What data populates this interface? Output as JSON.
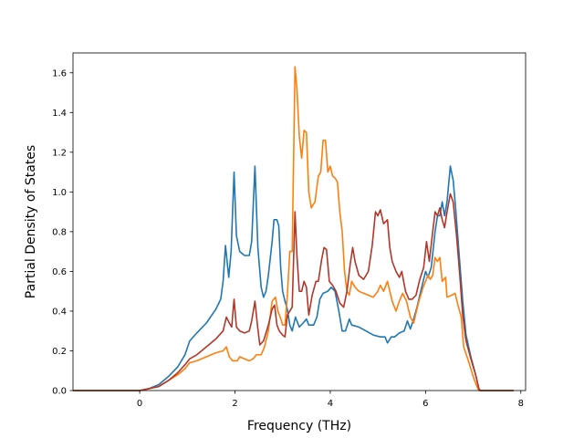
{
  "chart_data": {
    "type": "line",
    "title": "",
    "xlabel": "Frequency (THz)",
    "ylabel": "Partial Density of States",
    "xlim": [
      -1.4,
      8.1
    ],
    "ylim": [
      0.0,
      1.7
    ],
    "xticks": [
      0,
      2,
      4,
      6,
      8
    ],
    "yticks": [
      0.0,
      0.2,
      0.4,
      0.6,
      0.8,
      1.0,
      1.2,
      1.4,
      1.6
    ],
    "xtick_labels": [
      "0",
      "2",
      "4",
      "6",
      "8"
    ],
    "ytick_labels": [
      "0.0",
      "0.2",
      "0.4",
      "0.6",
      "0.8",
      "1.0",
      "1.2",
      "1.4",
      "1.6"
    ],
    "grid": false,
    "legend": null,
    "series": [
      {
        "color": "#1f77b4",
        "points": [
          [
            -1.4,
            0.0
          ],
          [
            -0.5,
            0.0
          ],
          [
            0.0,
            0.0
          ],
          [
            0.2,
            0.01
          ],
          [
            0.4,
            0.03
          ],
          [
            0.6,
            0.07
          ],
          [
            0.8,
            0.12
          ],
          [
            0.95,
            0.18
          ],
          [
            1.05,
            0.25
          ],
          [
            1.2,
            0.29
          ],
          [
            1.4,
            0.34
          ],
          [
            1.6,
            0.41
          ],
          [
            1.7,
            0.46
          ],
          [
            1.75,
            0.55
          ],
          [
            1.8,
            0.73
          ],
          [
            1.87,
            0.57
          ],
          [
            1.92,
            0.7
          ],
          [
            1.98,
            1.1
          ],
          [
            2.03,
            0.78
          ],
          [
            2.1,
            0.7
          ],
          [
            2.2,
            0.68
          ],
          [
            2.3,
            0.68
          ],
          [
            2.35,
            0.75
          ],
          [
            2.42,
            1.13
          ],
          [
            2.48,
            0.72
          ],
          [
            2.55,
            0.52
          ],
          [
            2.6,
            0.47
          ],
          [
            2.65,
            0.5
          ],
          [
            2.7,
            0.58
          ],
          [
            2.78,
            0.75
          ],
          [
            2.82,
            0.86
          ],
          [
            2.88,
            0.86
          ],
          [
            2.92,
            0.83
          ],
          [
            2.96,
            0.62
          ],
          [
            3.0,
            0.5
          ],
          [
            3.05,
            0.45
          ],
          [
            3.1,
            0.41
          ],
          [
            3.15,
            0.33
          ],
          [
            3.2,
            0.3
          ],
          [
            3.27,
            0.37
          ],
          [
            3.35,
            0.32
          ],
          [
            3.43,
            0.34
          ],
          [
            3.5,
            0.36
          ],
          [
            3.55,
            0.33
          ],
          [
            3.65,
            0.33
          ],
          [
            3.72,
            0.37
          ],
          [
            3.78,
            0.46
          ],
          [
            3.85,
            0.49
          ],
          [
            3.95,
            0.5
          ],
          [
            4.02,
            0.52
          ],
          [
            4.1,
            0.5
          ],
          [
            4.18,
            0.4
          ],
          [
            4.25,
            0.3
          ],
          [
            4.32,
            0.3
          ],
          [
            4.4,
            0.36
          ],
          [
            4.45,
            0.33
          ],
          [
            4.6,
            0.32
          ],
          [
            4.75,
            0.3
          ],
          [
            4.9,
            0.28
          ],
          [
            5.05,
            0.27
          ],
          [
            5.15,
            0.27
          ],
          [
            5.2,
            0.24
          ],
          [
            5.28,
            0.27
          ],
          [
            5.35,
            0.27
          ],
          [
            5.45,
            0.29
          ],
          [
            5.55,
            0.3
          ],
          [
            5.62,
            0.35
          ],
          [
            5.68,
            0.31
          ],
          [
            5.75,
            0.36
          ],
          [
            5.82,
            0.42
          ],
          [
            5.9,
            0.5
          ],
          [
            6.0,
            0.6
          ],
          [
            6.05,
            0.57
          ],
          [
            6.12,
            0.62
          ],
          [
            6.2,
            0.8
          ],
          [
            6.25,
            0.88
          ],
          [
            6.3,
            0.88
          ],
          [
            6.35,
            0.95
          ],
          [
            6.4,
            0.88
          ],
          [
            6.45,
            0.95
          ],
          [
            6.52,
            1.13
          ],
          [
            6.58,
            1.06
          ],
          [
            6.63,
            0.92
          ],
          [
            6.7,
            0.7
          ],
          [
            6.78,
            0.45
          ],
          [
            6.85,
            0.28
          ],
          [
            6.95,
            0.17
          ],
          [
            7.05,
            0.08
          ],
          [
            7.12,
            0.01
          ],
          [
            7.15,
            0.0
          ],
          [
            7.85,
            0.0
          ]
        ]
      },
      {
        "color": "#ff7f0e",
        "points": [
          [
            -1.4,
            0.0
          ],
          [
            -0.5,
            0.0
          ],
          [
            0.0,
            0.0
          ],
          [
            0.2,
            0.01
          ],
          [
            0.4,
            0.02
          ],
          [
            0.6,
            0.05
          ],
          [
            0.8,
            0.08
          ],
          [
            0.95,
            0.11
          ],
          [
            1.05,
            0.14
          ],
          [
            1.2,
            0.15
          ],
          [
            1.4,
            0.17
          ],
          [
            1.6,
            0.19
          ],
          [
            1.75,
            0.2
          ],
          [
            1.82,
            0.22
          ],
          [
            1.88,
            0.17
          ],
          [
            1.95,
            0.15
          ],
          [
            2.05,
            0.15
          ],
          [
            2.1,
            0.17
          ],
          [
            2.2,
            0.16
          ],
          [
            2.3,
            0.15
          ],
          [
            2.38,
            0.16
          ],
          [
            2.45,
            0.18
          ],
          [
            2.55,
            0.18
          ],
          [
            2.62,
            0.22
          ],
          [
            2.7,
            0.3
          ],
          [
            2.78,
            0.45
          ],
          [
            2.85,
            0.47
          ],
          [
            2.9,
            0.4
          ],
          [
            2.95,
            0.37
          ],
          [
            3.0,
            0.33
          ],
          [
            3.05,
            0.33
          ],
          [
            3.1,
            0.48
          ],
          [
            3.15,
            0.7
          ],
          [
            3.2,
            0.7
          ],
          [
            3.26,
            1.63
          ],
          [
            3.3,
            1.52
          ],
          [
            3.35,
            1.28
          ],
          [
            3.4,
            1.17
          ],
          [
            3.45,
            1.31
          ],
          [
            3.5,
            1.3
          ],
          [
            3.55,
            1.0
          ],
          [
            3.6,
            0.92
          ],
          [
            3.68,
            0.95
          ],
          [
            3.75,
            1.08
          ],
          [
            3.8,
            1.1
          ],
          [
            3.85,
            1.26
          ],
          [
            3.9,
            1.26
          ],
          [
            3.95,
            1.1
          ],
          [
            4.0,
            1.13
          ],
          [
            4.05,
            1.08
          ],
          [
            4.1,
            1.07
          ],
          [
            4.15,
            1.05
          ],
          [
            4.2,
            0.9
          ],
          [
            4.25,
            0.8
          ],
          [
            4.3,
            0.6
          ],
          [
            4.35,
            0.5
          ],
          [
            4.4,
            0.48
          ],
          [
            4.45,
            0.55
          ],
          [
            4.52,
            0.52
          ],
          [
            4.6,
            0.5
          ],
          [
            4.7,
            0.49
          ],
          [
            4.8,
            0.48
          ],
          [
            4.9,
            0.47
          ],
          [
            5.0,
            0.5
          ],
          [
            5.05,
            0.53
          ],
          [
            5.12,
            0.5
          ],
          [
            5.2,
            0.55
          ],
          [
            5.3,
            0.45
          ],
          [
            5.38,
            0.4
          ],
          [
            5.45,
            0.45
          ],
          [
            5.52,
            0.49
          ],
          [
            5.6,
            0.45
          ],
          [
            5.68,
            0.37
          ],
          [
            5.75,
            0.34
          ],
          [
            5.85,
            0.44
          ],
          [
            5.95,
            0.52
          ],
          [
            6.05,
            0.58
          ],
          [
            6.1,
            0.56
          ],
          [
            6.15,
            0.58
          ],
          [
            6.2,
            0.67
          ],
          [
            6.25,
            0.65
          ],
          [
            6.3,
            0.67
          ],
          [
            6.35,
            0.55
          ],
          [
            6.42,
            0.57
          ],
          [
            6.45,
            0.47
          ],
          [
            6.55,
            0.48
          ],
          [
            6.62,
            0.49
          ],
          [
            6.68,
            0.43
          ],
          [
            6.75,
            0.37
          ],
          [
            6.8,
            0.22
          ],
          [
            6.9,
            0.15
          ],
          [
            7.0,
            0.07
          ],
          [
            7.08,
            0.02
          ],
          [
            7.12,
            0.0
          ],
          [
            7.85,
            0.0
          ]
        ]
      },
      {
        "color": "#b2372a",
        "points": [
          [
            -1.4,
            0.0
          ],
          [
            -0.5,
            0.0
          ],
          [
            0.0,
            0.0
          ],
          [
            0.2,
            0.01
          ],
          [
            0.4,
            0.02
          ],
          [
            0.6,
            0.05
          ],
          [
            0.8,
            0.09
          ],
          [
            0.95,
            0.13
          ],
          [
            1.05,
            0.16
          ],
          [
            1.2,
            0.18
          ],
          [
            1.4,
            0.22
          ],
          [
            1.6,
            0.26
          ],
          [
            1.75,
            0.3
          ],
          [
            1.82,
            0.37
          ],
          [
            1.88,
            0.34
          ],
          [
            1.93,
            0.32
          ],
          [
            1.98,
            0.46
          ],
          [
            2.03,
            0.32
          ],
          [
            2.1,
            0.3
          ],
          [
            2.2,
            0.29
          ],
          [
            2.3,
            0.3
          ],
          [
            2.35,
            0.35
          ],
          [
            2.42,
            0.45
          ],
          [
            2.47,
            0.33
          ],
          [
            2.52,
            0.23
          ],
          [
            2.6,
            0.25
          ],
          [
            2.7,
            0.33
          ],
          [
            2.78,
            0.41
          ],
          [
            2.83,
            0.43
          ],
          [
            2.88,
            0.33
          ],
          [
            2.93,
            0.3
          ],
          [
            3.0,
            0.28
          ],
          [
            3.05,
            0.27
          ],
          [
            3.1,
            0.38
          ],
          [
            3.15,
            0.4
          ],
          [
            3.2,
            0.42
          ],
          [
            3.26,
            0.9
          ],
          [
            3.3,
            0.68
          ],
          [
            3.35,
            0.5
          ],
          [
            3.4,
            0.5
          ],
          [
            3.45,
            0.55
          ],
          [
            3.5,
            0.52
          ],
          [
            3.55,
            0.38
          ],
          [
            3.62,
            0.48
          ],
          [
            3.7,
            0.55
          ],
          [
            3.75,
            0.55
          ],
          [
            3.82,
            0.66
          ],
          [
            3.87,
            0.72
          ],
          [
            3.92,
            0.71
          ],
          [
            3.98,
            0.55
          ],
          [
            4.05,
            0.53
          ],
          [
            4.12,
            0.5
          ],
          [
            4.2,
            0.44
          ],
          [
            4.28,
            0.42
          ],
          [
            4.35,
            0.5
          ],
          [
            4.42,
            0.64
          ],
          [
            4.47,
            0.72
          ],
          [
            4.52,
            0.65
          ],
          [
            4.6,
            0.58
          ],
          [
            4.7,
            0.56
          ],
          [
            4.8,
            0.6
          ],
          [
            4.88,
            0.73
          ],
          [
            4.95,
            0.9
          ],
          [
            5.0,
            0.88
          ],
          [
            5.05,
            0.91
          ],
          [
            5.12,
            0.84
          ],
          [
            5.2,
            0.86
          ],
          [
            5.25,
            0.72
          ],
          [
            5.3,
            0.65
          ],
          [
            5.38,
            0.6
          ],
          [
            5.45,
            0.57
          ],
          [
            5.5,
            0.6
          ],
          [
            5.58,
            0.5
          ],
          [
            5.65,
            0.46
          ],
          [
            5.72,
            0.46
          ],
          [
            5.8,
            0.48
          ],
          [
            5.88,
            0.56
          ],
          [
            5.96,
            0.62
          ],
          [
            6.02,
            0.75
          ],
          [
            6.08,
            0.65
          ],
          [
            6.15,
            0.8
          ],
          [
            6.2,
            0.9
          ],
          [
            6.25,
            0.88
          ],
          [
            6.3,
            0.92
          ],
          [
            6.35,
            0.86
          ],
          [
            6.4,
            0.82
          ],
          [
            6.45,
            0.9
          ],
          [
            6.52,
            0.99
          ],
          [
            6.58,
            0.95
          ],
          [
            6.65,
            0.78
          ],
          [
            6.72,
            0.58
          ],
          [
            6.78,
            0.38
          ],
          [
            6.85,
            0.25
          ],
          [
            6.95,
            0.16
          ],
          [
            7.05,
            0.08
          ],
          [
            7.12,
            0.01
          ],
          [
            7.15,
            0.0
          ],
          [
            7.85,
            0.0
          ]
        ]
      }
    ]
  }
}
